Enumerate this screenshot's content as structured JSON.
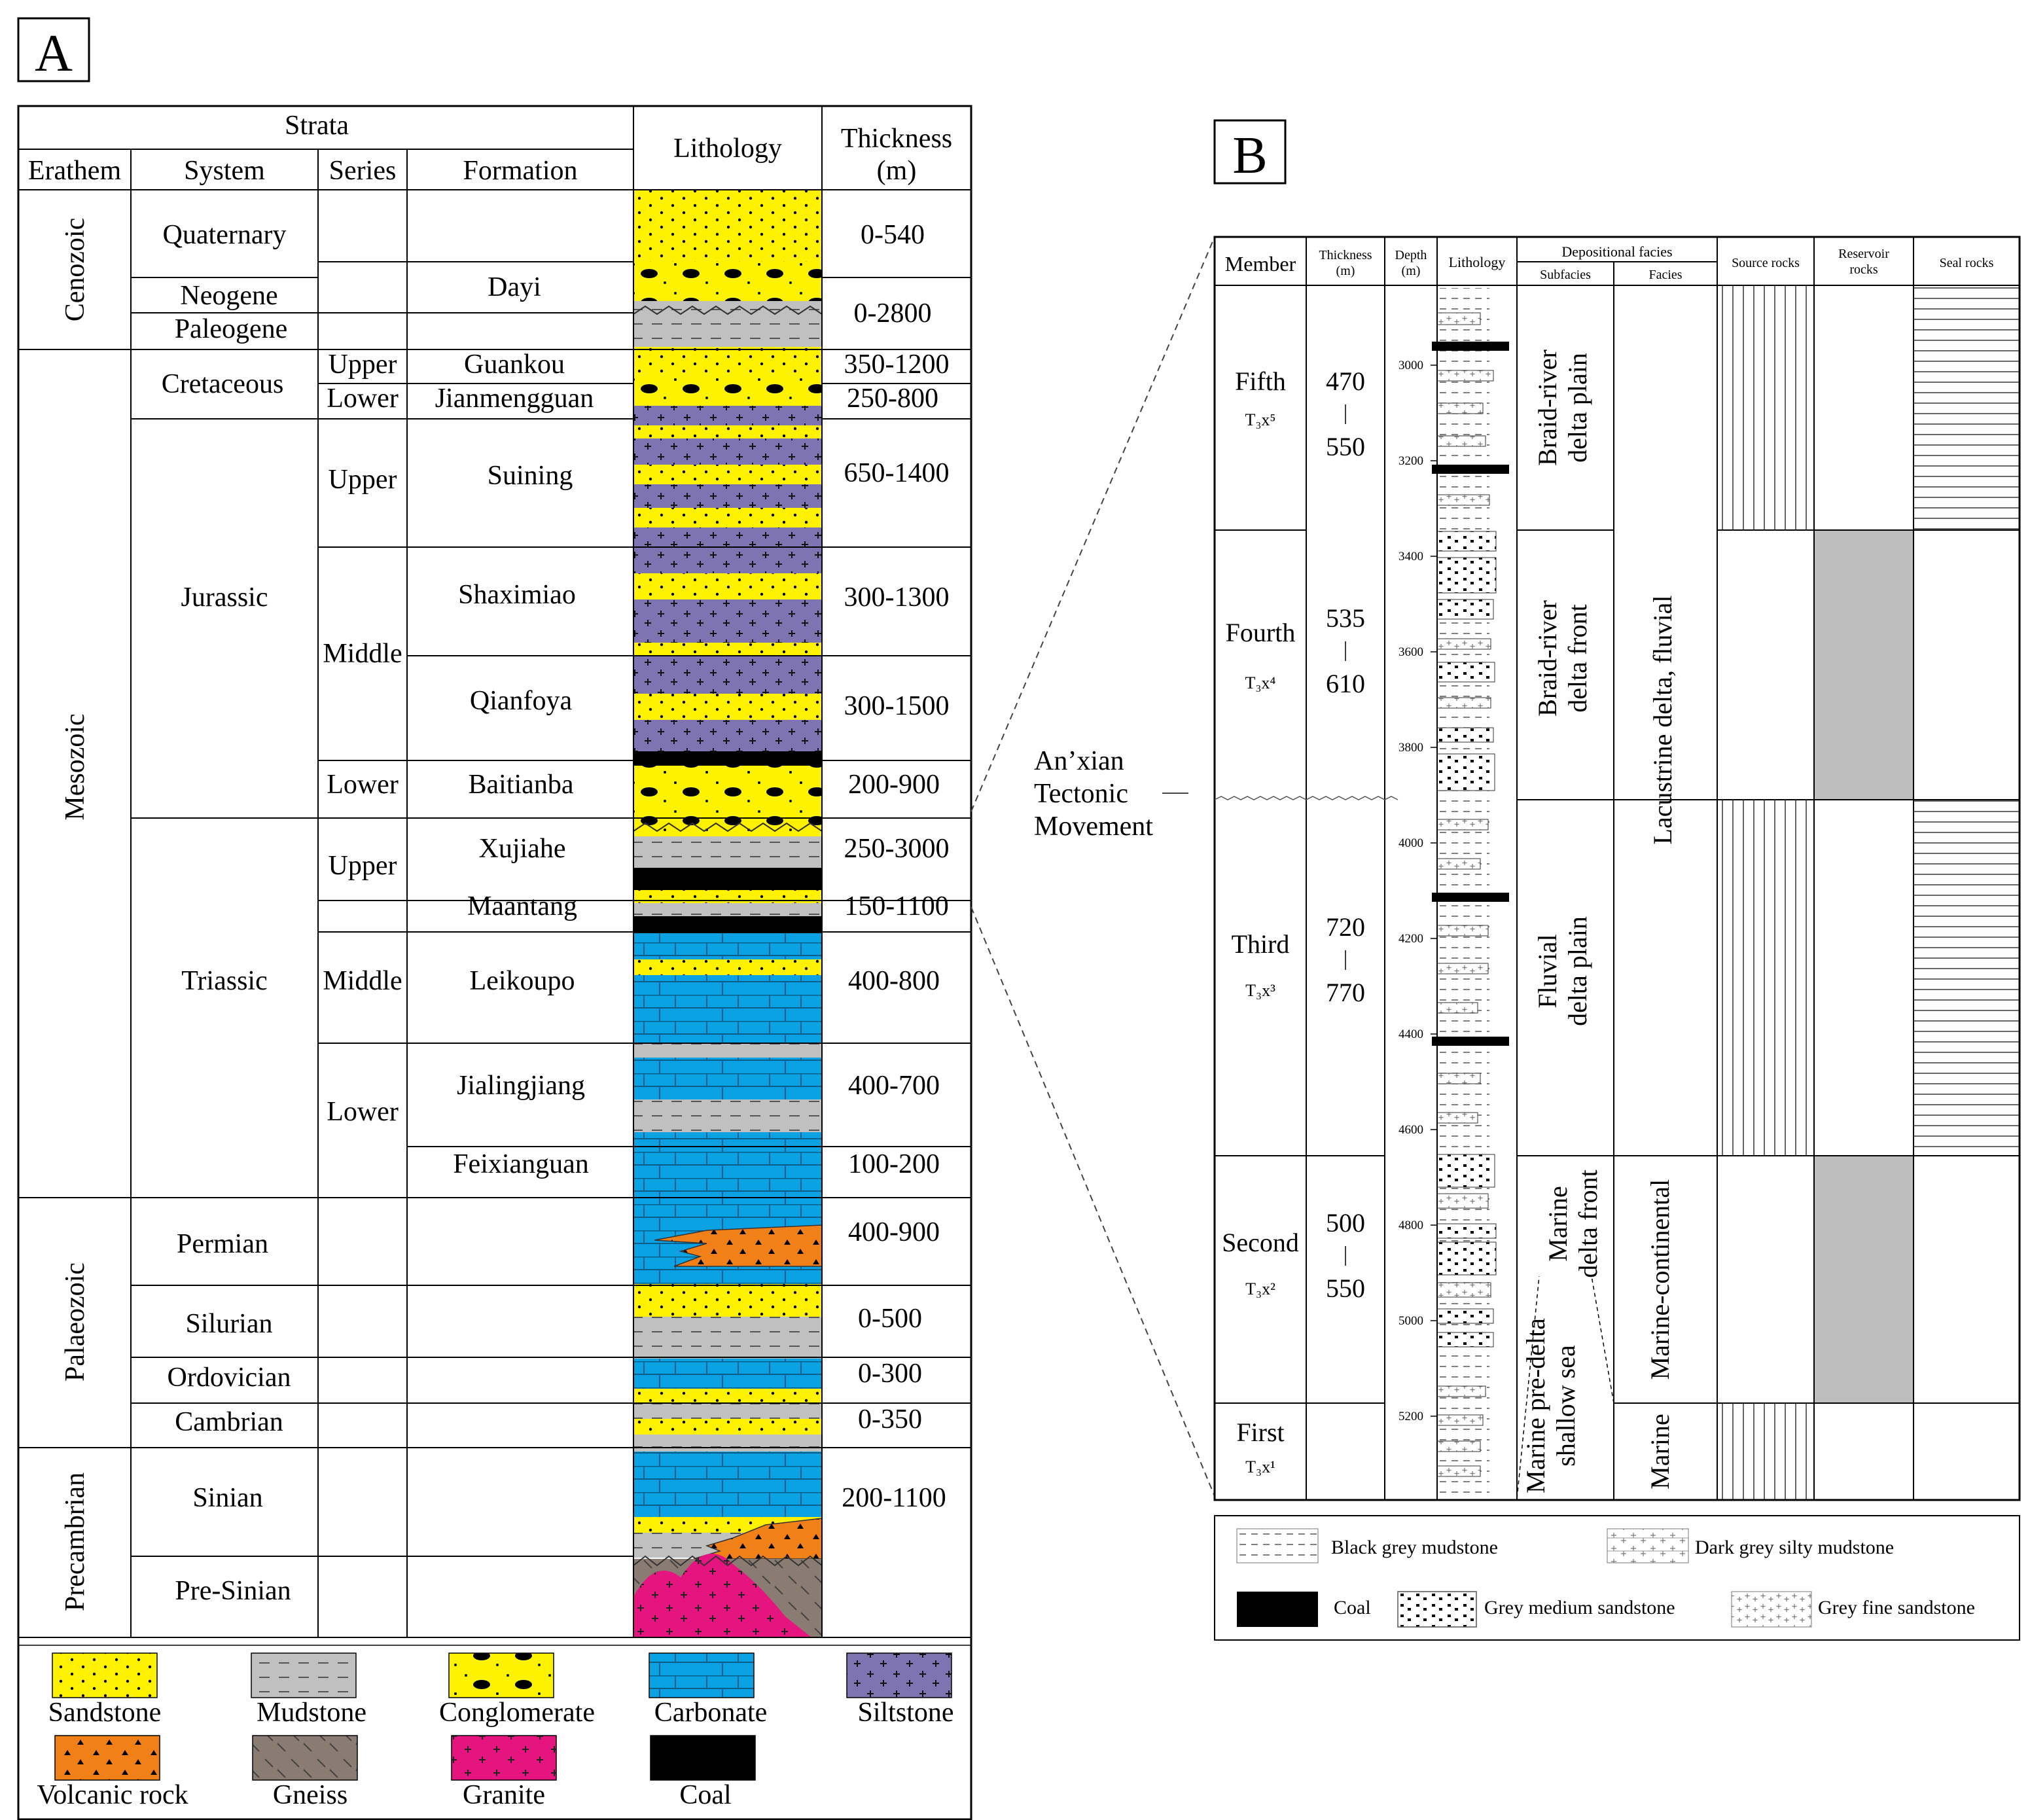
{
  "panelA": {
    "tag": "A",
    "headers": {
      "strata": "Strata",
      "erathem": "Erathem",
      "system": "System",
      "series": "Series",
      "formation": "Formation",
      "lithology": "Lithology",
      "thickness": "Thickness",
      "thickness_unit": "(m)"
    },
    "erathems": [
      "Cenozoic",
      "Mesozoic",
      "Palaeozoic",
      "Precambrian"
    ],
    "systems": [
      "Quaternary",
      "Neogene",
      "Paleogene",
      "Cretaceous",
      "Jurassic",
      "Triassic",
      "Permian",
      "Silurian",
      "Ordovician",
      "Cambrian",
      "Sinian",
      "Pre-Sinian"
    ],
    "series": [
      "Upper",
      "Lower",
      "Upper",
      "Middle",
      "Lower",
      "Upper",
      "Middle",
      "Lower"
    ],
    "formations": [
      "Dayi",
      "Guankou",
      "Jianmengguan",
      "Suining",
      "Shaximiao",
      "Qianfoya",
      "Baitianba",
      "Xujiahe",
      "Maantang",
      "Leikoupo",
      "Jialingjiang",
      "Feixianguan"
    ],
    "thickness": [
      "0-540",
      "0-2800",
      "350-1200",
      "250-800",
      "650-1400",
      "300-1300",
      "300-1500",
      "200-900",
      "250-3000",
      "150-1100",
      "400-800",
      "400-700",
      "100-200",
      "400-900",
      "0-500",
      "0-300",
      "0-350",
      "200-1100"
    ],
    "legend": [
      "Sandstone",
      "Mudstone",
      "Conglomerate",
      "Carbonate",
      "Siltstone",
      "Volcanic rock",
      "Gneiss",
      "Granite",
      "Coal"
    ]
  },
  "annotation": [
    "An’xian",
    "Tectonic",
    "Movement"
  ],
  "panelB": {
    "tag": "B",
    "headers": {
      "member": "Member",
      "thickness": "Thickness",
      "thickness_unit": "(m)",
      "depth": "Depth",
      "depth_unit": "(m)",
      "lithology": "Lithology",
      "depositional_facies": "Depositional facies",
      "subfacies": "Subfacies",
      "facies": "Facies",
      "source_rocks": "Source rocks",
      "reservoir_rocks_1": "Reservoir",
      "reservoir_rocks_2": "rocks",
      "seal_rocks": "Seal rocks"
    },
    "members": [
      {
        "name": "Fifth",
        "code": "T₃x⁵",
        "t_min": "470",
        "t_max": "550"
      },
      {
        "name": "Fourth",
        "code": "T₃x⁴",
        "t_min": "535",
        "t_max": "610"
      },
      {
        "name": "Third",
        "code": "T₃x³",
        "t_min": "720",
        "t_max": "770"
      },
      {
        "name": "Second",
        "code": "T₃x²",
        "t_min": "500",
        "t_max": "550"
      },
      {
        "name": "First",
        "code": "T₃x¹"
      }
    ],
    "depth_ticks": [
      "3000",
      "3200",
      "3400",
      "3600",
      "3800",
      "4000",
      "4200",
      "4400",
      "4600",
      "4800",
      "5000",
      "5200"
    ],
    "subfacies": [
      [
        "Braid-river",
        "delta plain"
      ],
      [
        "Braid-river",
        "delta front"
      ],
      [
        "Fluvial",
        "delta plain"
      ],
      [
        "Marine",
        "delta front"
      ],
      [
        "Marine pre-delta",
        "shallow sea"
      ]
    ],
    "facies": [
      "Lacustrine delta, fluvial",
      "Marine-continental",
      "Marine"
    ],
    "legend": [
      "Black grey mudstone",
      "Dark grey silty mudstone",
      "Coal",
      "Grey medium sandstone",
      "Grey fine sandstone"
    ]
  },
  "colors": {
    "sandstone": "#FFF200",
    "mudstone": "#C0C0C0",
    "carbonate": "#0BA2E4",
    "siltstone": "#7E74B1",
    "volcanic": "#F28019",
    "gneiss": "#8A7C73",
    "granite": "#E6147E",
    "coal": "#000000",
    "reservoir": "#BEBEBE"
  }
}
